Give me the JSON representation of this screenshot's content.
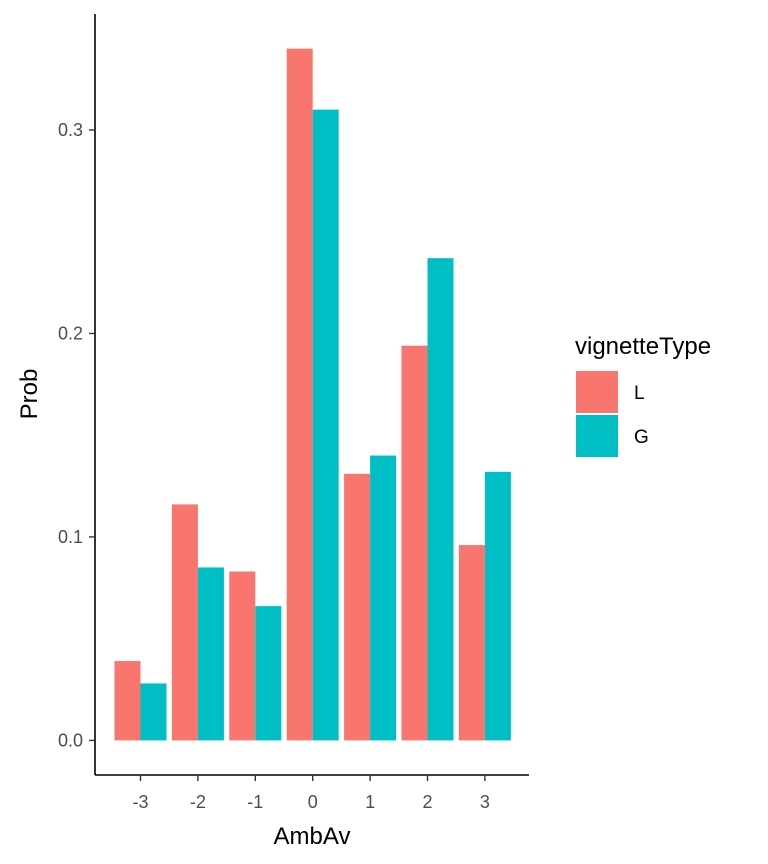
{
  "chart_data": {
    "type": "bar",
    "categories": [
      "-3",
      "-2",
      "-1",
      "0",
      "1",
      "2",
      "3"
    ],
    "series": [
      {
        "name": "L",
        "color": "#F8766D",
        "values": [
          0.039,
          0.116,
          0.083,
          0.34,
          0.131,
          0.194,
          0.096
        ]
      },
      {
        "name": "G",
        "color": "#00BFC4",
        "values": [
          0.028,
          0.085,
          0.066,
          0.31,
          0.14,
          0.237,
          0.132
        ]
      }
    ],
    "xlabel": "AmbAv",
    "ylabel": "Prob",
    "yticks": [
      "0.0",
      "0.1",
      "0.2",
      "0.3"
    ],
    "ytick_values": [
      0,
      0.1,
      0.2,
      0.3
    ],
    "ylim": [
      -0.017,
      0.357
    ],
    "legend": {
      "title": "vignetteType",
      "position": "right"
    },
    "grid": false
  }
}
